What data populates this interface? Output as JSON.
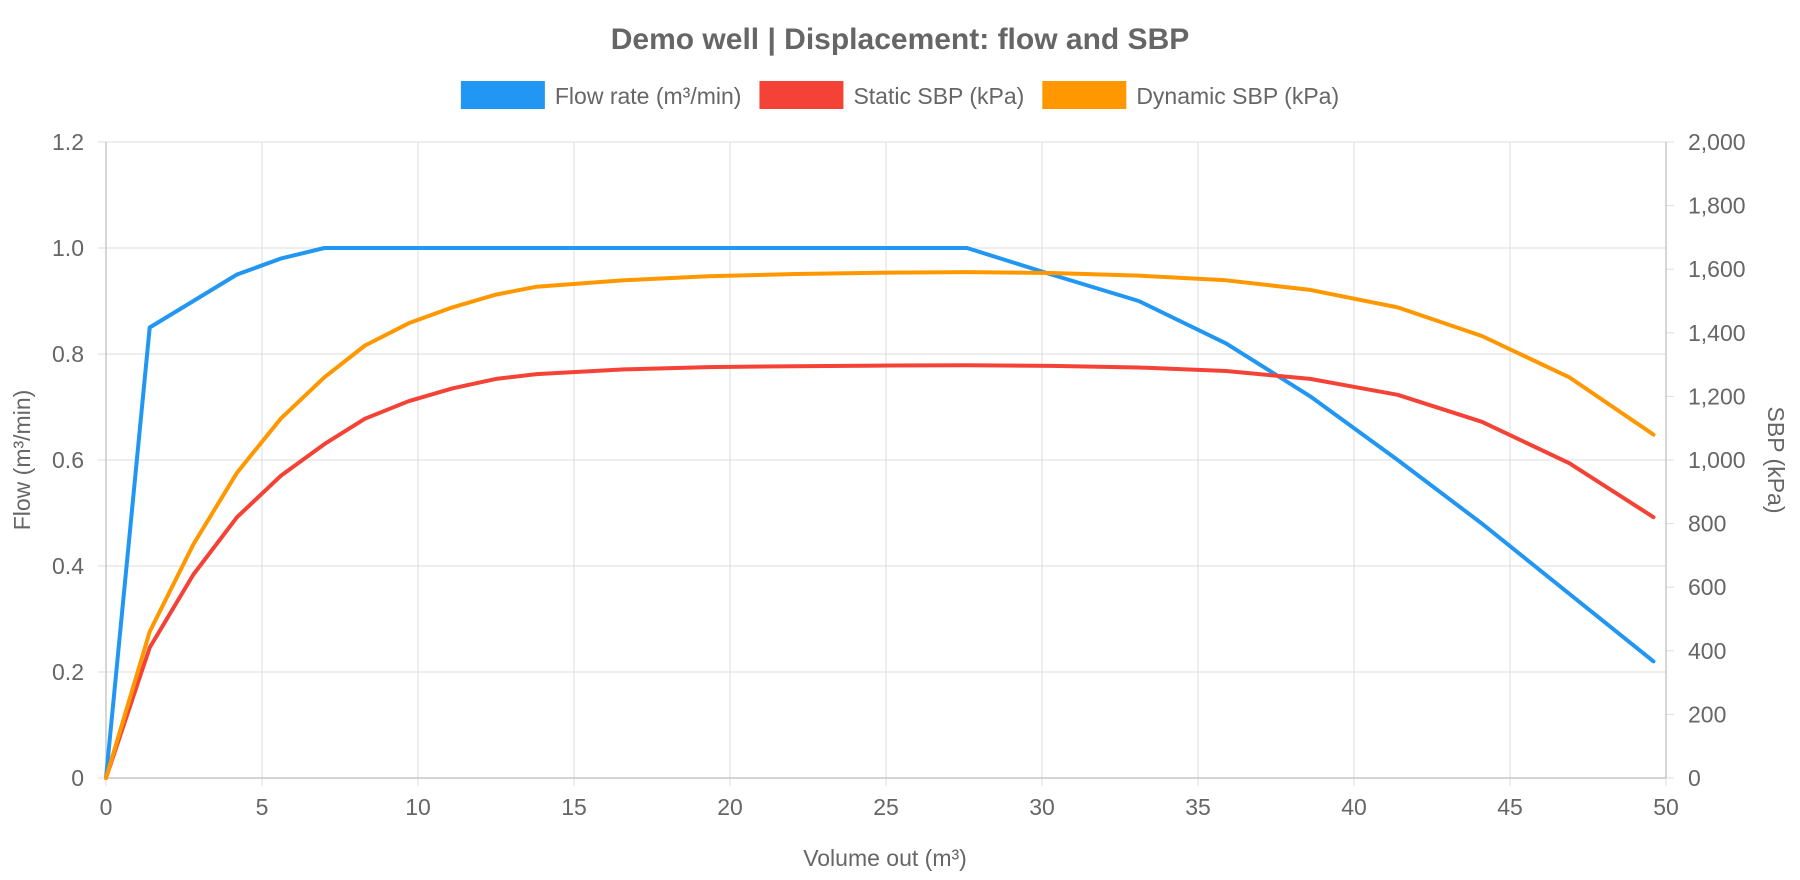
{
  "chart_data": {
    "type": "line",
    "title": "Demo well | Displacement: flow and SBP",
    "xlabel": "Volume out (m³)",
    "ylabel_left": "Flow (m³/min)",
    "ylabel_right": "SBP (kPa)",
    "xlim": [
      0,
      50
    ],
    "ylim_left": [
      0,
      1.2
    ],
    "ylim_right": [
      0,
      2000
    ],
    "grid": true,
    "legend_position": "top",
    "x_ticks": [
      "0",
      "5",
      "10",
      "15",
      "20",
      "25",
      "30",
      "35",
      "40",
      "45",
      "50"
    ],
    "y_left_ticks": [
      "0",
      "0.2",
      "0.4",
      "0.6",
      "0.8",
      "1.0",
      "1.2"
    ],
    "y_right_ticks": [
      "0",
      "200",
      "400",
      "600",
      "800",
      "1,000",
      "1,200",
      "1,400",
      "1,600",
      "1,800",
      "2,000"
    ],
    "series": [
      {
        "name": "Flow rate (m³/min)",
        "axis": "left",
        "color": "#2196f3",
        "points": [
          [
            0,
            0
          ],
          [
            1.4,
            0.85
          ],
          [
            4.2,
            0.95
          ],
          [
            5.6,
            0.98
          ],
          [
            7,
            1.0
          ],
          [
            27.6,
            1.0
          ],
          [
            30.3,
            0.95
          ],
          [
            33.1,
            0.9
          ],
          [
            35.9,
            0.82
          ],
          [
            38.6,
            0.72
          ],
          [
            41.4,
            0.6
          ],
          [
            44.1,
            0.48
          ],
          [
            49.6,
            0.22
          ]
        ]
      },
      {
        "name": "Static SBP (kPa)",
        "axis": "right",
        "color": "#f44336",
        "points": [
          [
            0,
            0
          ],
          [
            1.4,
            410
          ],
          [
            2.8,
            640
          ],
          [
            4.2,
            820
          ],
          [
            5.6,
            950
          ],
          [
            7,
            1050
          ],
          [
            8.3,
            1130
          ],
          [
            9.7,
            1185
          ],
          [
            11.1,
            1225
          ],
          [
            12.5,
            1255
          ],
          [
            13.8,
            1270
          ],
          [
            16.6,
            1285
          ],
          [
            19.3,
            1292
          ],
          [
            22.1,
            1295
          ],
          [
            24.8,
            1297
          ],
          [
            27.6,
            1298
          ],
          [
            30.3,
            1296
          ],
          [
            33.1,
            1291
          ],
          [
            35.9,
            1280
          ],
          [
            38.6,
            1255
          ],
          [
            41.4,
            1205
          ],
          [
            44.1,
            1120
          ],
          [
            46.9,
            990
          ],
          [
            49.6,
            820
          ]
        ]
      },
      {
        "name": "Dynamic SBP (kPa)",
        "axis": "right",
        "color": "#ff9800",
        "points": [
          [
            0,
            0
          ],
          [
            1.4,
            460
          ],
          [
            2.8,
            735
          ],
          [
            4.2,
            960
          ],
          [
            5.6,
            1130
          ],
          [
            7,
            1260
          ],
          [
            8.3,
            1360
          ],
          [
            9.7,
            1430
          ],
          [
            11.1,
            1480
          ],
          [
            12.5,
            1520
          ],
          [
            13.8,
            1545
          ],
          [
            16.6,
            1565
          ],
          [
            19.3,
            1578
          ],
          [
            22.1,
            1585
          ],
          [
            24.8,
            1589
          ],
          [
            27.6,
            1591
          ],
          [
            30.3,
            1588
          ],
          [
            33.1,
            1580
          ],
          [
            35.9,
            1565
          ],
          [
            38.6,
            1535
          ],
          [
            41.4,
            1480
          ],
          [
            44.1,
            1390
          ],
          [
            46.9,
            1260
          ],
          [
            49.6,
            1080
          ]
        ]
      }
    ]
  }
}
